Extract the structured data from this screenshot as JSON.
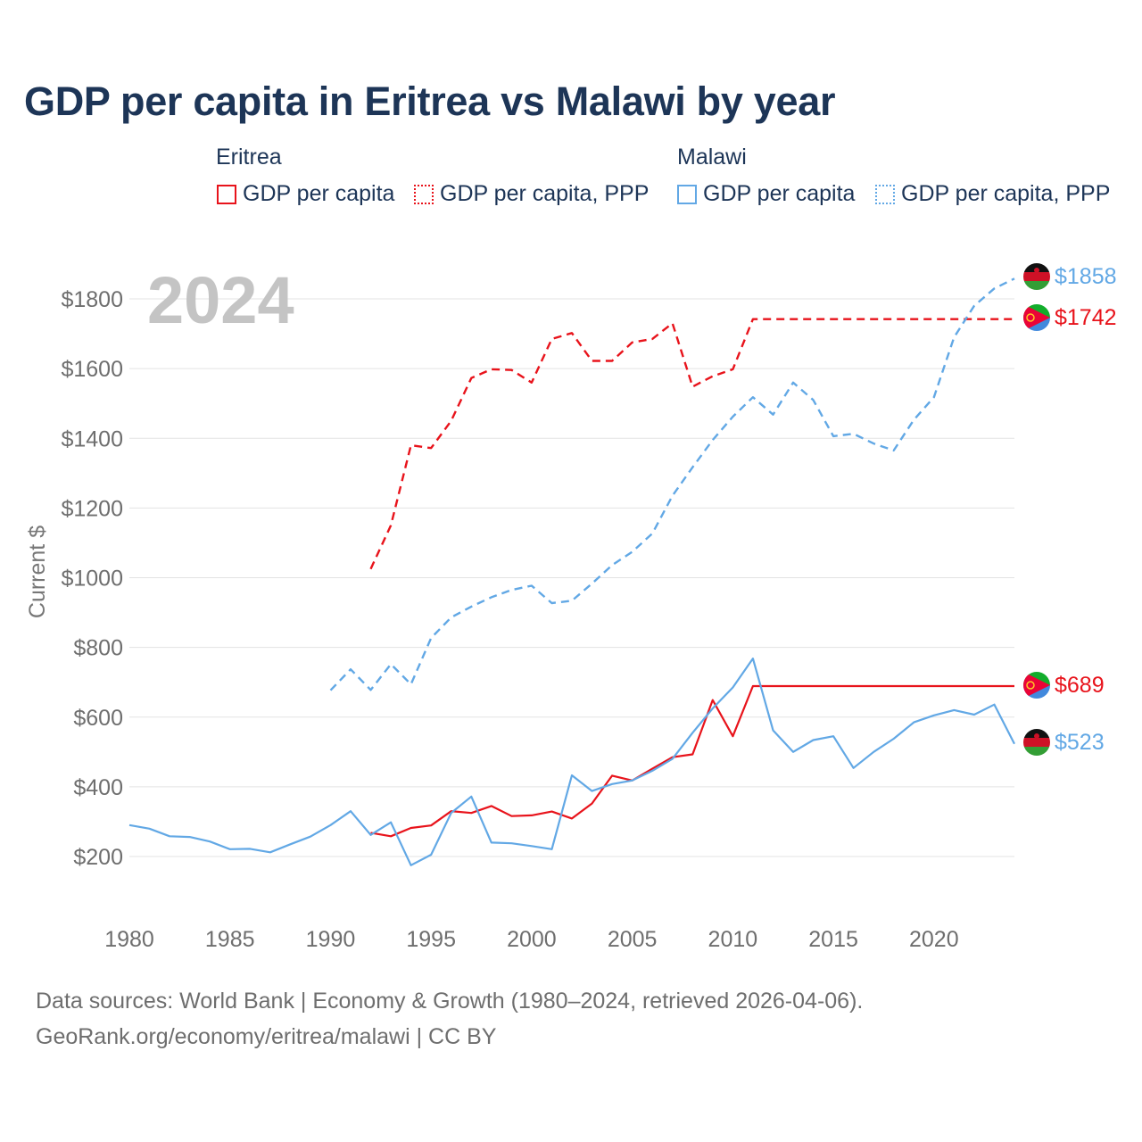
{
  "title": "GDP per capita in Eritrea vs Malawi by year",
  "legend": {
    "groups": [
      {
        "name": "Eritrea",
        "items": [
          "GDP per capita",
          "GDP per capita, PPP"
        ]
      },
      {
        "name": "Malawi",
        "items": [
          "GDP per capita",
          "GDP per capita, PPP"
        ]
      }
    ]
  },
  "colors": {
    "eritrea": "#e8131b",
    "malawi": "#62a8e5"
  },
  "year_watermark": "2024",
  "footer": {
    "line1": "Data sources: World Bank | Economy & Growth (1980–2024, retrieved 2026-04-06).",
    "line2": "GeoRank.org/economy/eritrea/malawi | CC BY"
  },
  "chart_data": {
    "type": "line",
    "ylabel": "Current $",
    "xlim": [
      1980,
      2024
    ],
    "ylim": [
      0,
      1900
    ],
    "x_ticks": [
      1980,
      1985,
      1990,
      1995,
      2000,
      2005,
      2010,
      2015,
      2020
    ],
    "y_ticks": [
      200,
      400,
      600,
      800,
      1000,
      1200,
      1400,
      1600,
      1800
    ],
    "y_tick_labels": [
      "$200",
      "$400",
      "$600",
      "$800",
      "$1000",
      "$1200",
      "$1400",
      "$1600",
      "$1800"
    ],
    "series": [
      {
        "name": "Eritrea GDP per capita",
        "country": "Eritrea",
        "style": "solid",
        "color": "#e8131b",
        "x": [
          1992,
          1993,
          1994,
          1995,
          1996,
          1997,
          1998,
          1999,
          2000,
          2001,
          2002,
          2003,
          2004,
          2005,
          2006,
          2007,
          2008,
          2009,
          2010,
          2011,
          2024
        ],
        "values": [
          268,
          258,
          282,
          289,
          330,
          325,
          345,
          316,
          318,
          329,
          309,
          352,
          432,
          418,
          452,
          485,
          493,
          649,
          545,
          689,
          689
        ],
        "end_label": "$689"
      },
      {
        "name": "Eritrea GDP per capita, PPP",
        "country": "Eritrea",
        "style": "dashed",
        "color": "#e8131b",
        "x": [
          1992,
          1993,
          1994,
          1995,
          1996,
          1997,
          1998,
          1999,
          2000,
          2001,
          2002,
          2003,
          2004,
          2005,
          2006,
          2007,
          2008,
          2009,
          2010,
          2011,
          2024
        ],
        "values": [
          1025,
          1150,
          1380,
          1372,
          1450,
          1573,
          1598,
          1596,
          1560,
          1685,
          1702,
          1622,
          1622,
          1675,
          1685,
          1730,
          1548,
          1578,
          1598,
          1742,
          1742
        ],
        "end_label": "$1742"
      },
      {
        "name": "Malawi GDP per capita",
        "country": "Malawi",
        "style": "solid",
        "color": "#62a8e5",
        "x": [
          1980,
          1981,
          1982,
          1983,
          1984,
          1985,
          1986,
          1987,
          1988,
          1989,
          1990,
          1991,
          1992,
          1993,
          1994,
          1995,
          1996,
          1997,
          1998,
          1999,
          2000,
          2001,
          2002,
          2003,
          2004,
          2005,
          2006,
          2007,
          2008,
          2009,
          2010,
          2011,
          2012,
          2013,
          2014,
          2015,
          2016,
          2017,
          2018,
          2019,
          2020,
          2021,
          2022,
          2023,
          2024
        ],
        "values": [
          290,
          280,
          258,
          256,
          243,
          221,
          222,
          212,
          235,
          257,
          290,
          330,
          262,
          298,
          175,
          205,
          325,
          372,
          240,
          238,
          230,
          221,
          433,
          388,
          408,
          418,
          446,
          480,
          555,
          625,
          685,
          768,
          562,
          500,
          534,
          545,
          454,
          500,
          538,
          585,
          605,
          620,
          607,
          636,
          523
        ],
        "end_label": "$523"
      },
      {
        "name": "Malawi GDP per capita, PPP",
        "country": "Malawi",
        "style": "dashed",
        "color": "#62a8e5",
        "x": [
          1990,
          1991,
          1992,
          1993,
          1994,
          1995,
          1996,
          1997,
          1998,
          1999,
          2000,
          2001,
          2002,
          2003,
          2004,
          2005,
          2006,
          2007,
          2008,
          2009,
          2010,
          2011,
          2012,
          2013,
          2014,
          2015,
          2016,
          2017,
          2018,
          2019,
          2020,
          2021,
          2022,
          2023,
          2024
        ],
        "values": [
          677,
          737,
          678,
          752,
          694,
          827,
          886,
          917,
          944,
          965,
          977,
          927,
          934,
          983,
          1036,
          1074,
          1127,
          1235,
          1317,
          1395,
          1462,
          1518,
          1468,
          1560,
          1510,
          1406,
          1413,
          1385,
          1365,
          1453,
          1518,
          1690,
          1780,
          1830,
          1858
        ],
        "end_label": "$1858"
      }
    ]
  }
}
